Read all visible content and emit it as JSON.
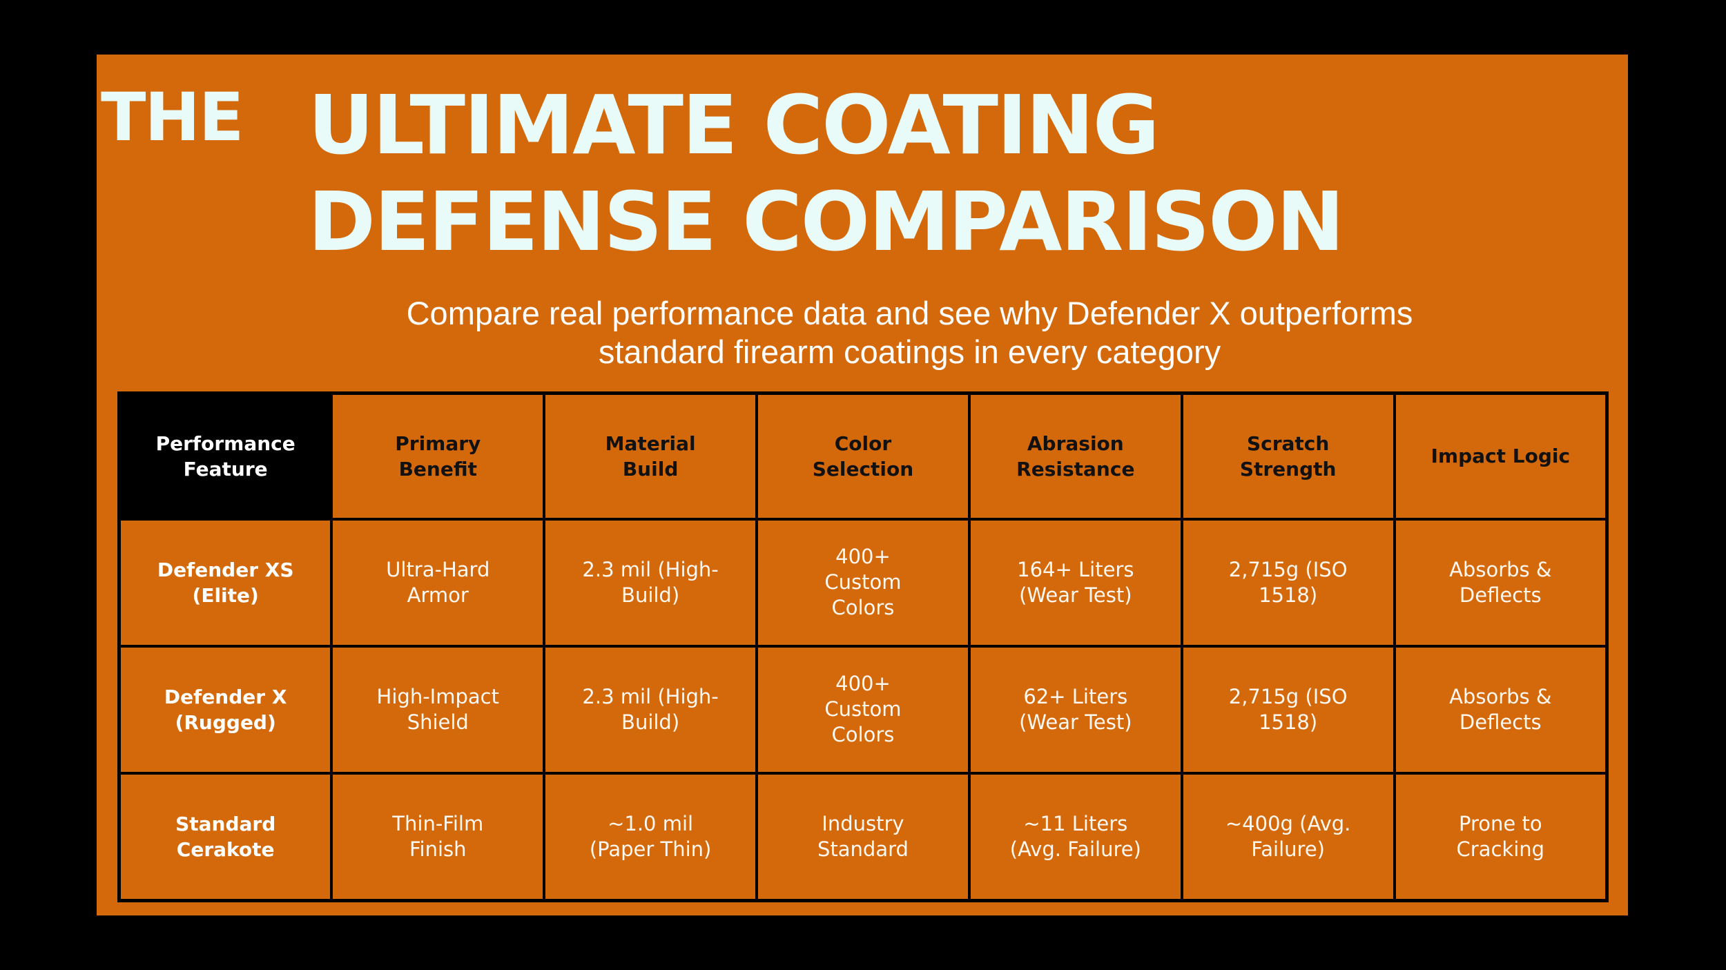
{
  "title": {
    "prefix": "THE",
    "line1": "ULTIMATE COATING",
    "line2": "DEFENSE COMPARISON"
  },
  "subtitle": {
    "line1": "Compare real performance data and see why Defender X outperforms",
    "line2": "standard firearm coatings in every category"
  },
  "table": {
    "headers": [
      [
        "Performance",
        "Feature"
      ],
      [
        "Primary",
        "Benefit"
      ],
      [
        "Material",
        "Build"
      ],
      [
        "Color",
        "Selection"
      ],
      [
        "Abrasion",
        "Resistance"
      ],
      [
        "Scratch",
        "Strength"
      ],
      [
        "Impact Logic"
      ]
    ],
    "rows": [
      [
        [
          "Defender XS",
          "(Elite)"
        ],
        [
          "Ultra-Hard",
          "Armor"
        ],
        [
          "2.3 mil (High-",
          "Build)"
        ],
        [
          "400+",
          "Custom",
          "Colors"
        ],
        [
          "164+ Liters",
          "(Wear Test)"
        ],
        [
          "2,715g (ISO",
          "1518)"
        ],
        [
          "Absorbs &",
          "Deflects"
        ]
      ],
      [
        [
          "Defender X",
          "(Rugged)"
        ],
        [
          "High-Impact",
          "Shield"
        ],
        [
          "2.3 mil (High-",
          "Build)"
        ],
        [
          "400+",
          "Custom",
          "Colors"
        ],
        [
          "62+ Liters",
          "(Wear Test)"
        ],
        [
          "2,715g (ISO",
          "1518)"
        ],
        [
          "Absorbs &",
          "Deflects"
        ]
      ],
      [
        [
          "Standard",
          "Cerakote"
        ],
        [
          "Thin-Film",
          "Finish"
        ],
        [
          "~1.0 mil",
          "(Paper Thin)"
        ],
        [
          "Industry",
          "Standard"
        ],
        [
          "~11 Liters",
          "(Avg. Failure)"
        ],
        [
          "~400g (Avg.",
          "Failure)"
        ],
        [
          "Prone to",
          "Cracking"
        ]
      ]
    ]
  },
  "colors": {
    "background": "#000000",
    "panel": "#d4690c",
    "title_text": "#e9fbf8",
    "header_text": "#111111",
    "cell_text": "#ffffff"
  }
}
